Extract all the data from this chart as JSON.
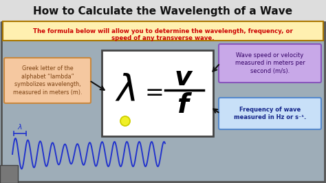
{
  "title": "How to Calculate the Wavelength of a Wave",
  "title_fontsize": 11,
  "title_color": "#111111",
  "subtitle_line1": "The formula below will allow you to determine the wavelength, frequency, or",
  "subtitle_line2": "speed of any transverse wave.",
  "subtitle_color": "#cc0000",
  "subtitle_bg": "#fff0b0",
  "subtitle_border": "#aa7700",
  "main_bg": "#9eadb8",
  "outer_border": "#555555",
  "formula_box_bg": "#ffffff",
  "formula_box_border": "#444444",
  "lambda_label": "Greek letter of the\nalphabet “lambda”\nsymbolizes wavelength,\nmeasured in meters (m).",
  "lambda_box_bg": "#f5c8a0",
  "lambda_box_border": "#c88840",
  "lambda_text_color": "#7a4010",
  "v_label": "Wave speed or velocity\nmeasured in meters per\nsecond (m/s).",
  "v_box_bg": "#c8a8e8",
  "v_box_border": "#8855bb",
  "v_text_color": "#330066",
  "f_label": "Frequency of wave\nmeasured in Hz or s⁻¹.",
  "f_box_bg": "#c8e0f8",
  "f_box_border": "#5588cc",
  "f_text_color": "#112288",
  "wave_color": "#2233cc",
  "arrow_color": "#111111",
  "title_bg": "#e8e8e8",
  "fig_bg": "#9eadb8"
}
